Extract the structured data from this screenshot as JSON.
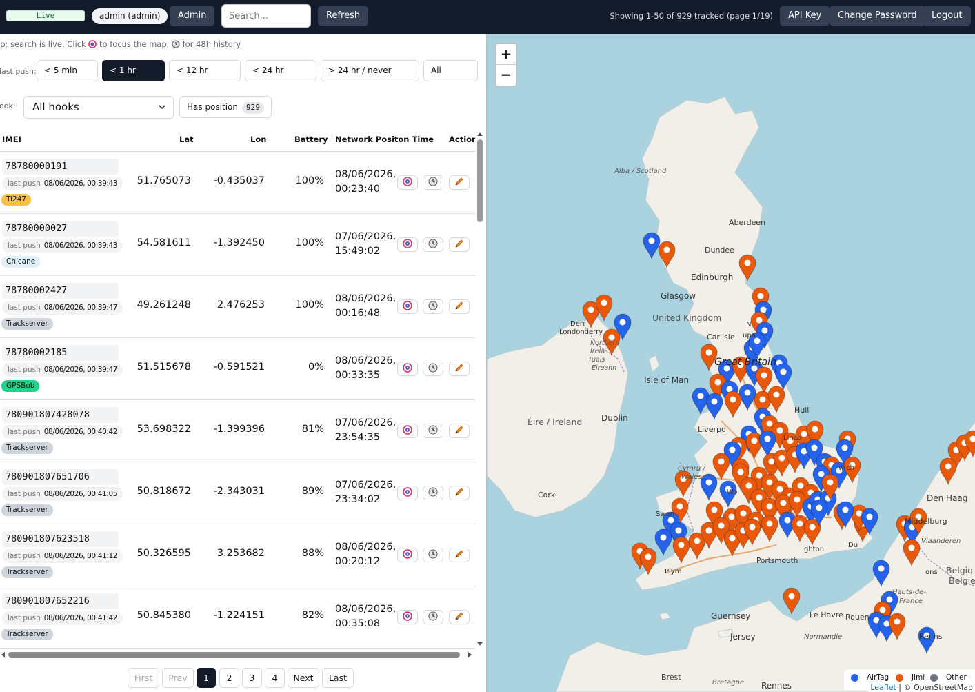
{
  "header": {
    "status": "Live",
    "user": "admin (admin)",
    "admin_label": "Admin",
    "search_placeholder": "Search...",
    "refresh_label": "Refresh",
    "showing": "Showing 1-50 of 929 tracked (page 1/19)",
    "api_key_label": "API Key",
    "change_password_label": "Change Password",
    "logout_label": "Logout"
  },
  "tip": {
    "part1": "ip: search is live. Click",
    "part2": "to focus the map,",
    "part3": "for 48h history."
  },
  "filters": {
    "last_push_label": "last push:",
    "buttons": [
      "< 5 min",
      "< 1 hr",
      "< 12 hr",
      "< 24 hr",
      "> 24 hr / never",
      "All"
    ],
    "active_index": 1,
    "hook_label": "ook:",
    "hook_value": "All hooks",
    "has_position_label": "Has position",
    "has_position_count": "929"
  },
  "table": {
    "headers": {
      "imei": "IMEI",
      "lat": "Lat",
      "lon": "Lon",
      "battery": "Battery",
      "time": "Network Positon Time",
      "actions": "Actions"
    },
    "push_key": "last push",
    "rows": [
      {
        "imei": "78780000191",
        "push": "08/06/2026, 00:39:43",
        "hook": "Ti247",
        "lat": "51.765073",
        "lon": "-0.435037",
        "battery": "100%",
        "date": "08/06/2026,",
        "time": "00:23:40"
      },
      {
        "imei": "78780000027",
        "push": "08/06/2026, 00:39:43",
        "hook": "Chicane",
        "lat": "54.581611",
        "lon": "-1.392450",
        "battery": "100%",
        "date": "07/06/2026,",
        "time": "15:49:02"
      },
      {
        "imei": "78780002427",
        "push": "08/06/2026, 00:39:47",
        "hook": "Trackserver",
        "lat": "49.261248",
        "lon": "2.476253",
        "battery": "100%",
        "date": "08/06/2026,",
        "time": "00:16:48"
      },
      {
        "imei": "78780002185",
        "push": "08/06/2026, 00:39:47",
        "hook": "GPSBob",
        "lat": "51.515678",
        "lon": "-0.591521",
        "battery": "0%",
        "date": "08/06/2026,",
        "time": "00:33:35"
      },
      {
        "imei": "780901807428078",
        "push": "08/06/2026, 00:40:42",
        "hook": "Trackserver",
        "lat": "53.698322",
        "lon": "-1.399396",
        "battery": "81%",
        "date": "07/06/2026,",
        "time": "23:54:35"
      },
      {
        "imei": "780901807651706",
        "push": "08/06/2026, 00:41:05",
        "hook": "Trackserver",
        "lat": "50.818672",
        "lon": "-2.343031",
        "battery": "89%",
        "date": "07/06/2026,",
        "time": "23:34:02"
      },
      {
        "imei": "780901807623518",
        "push": "08/06/2026, 00:41:12",
        "hook": "Trackserver",
        "lat": "50.326595",
        "lon": "3.253682",
        "battery": "88%",
        "date": "08/06/2026,",
        "time": "00:20:12"
      },
      {
        "imei": "780901807652216",
        "push": "08/06/2026, 00:41:42",
        "hook": "Trackserver",
        "lat": "50.845380",
        "lon": "-1.224151",
        "battery": "82%",
        "date": "08/06/2026,",
        "time": "00:35:08"
      }
    ]
  },
  "hook_colors": {
    "Ti247": "#f7c244",
    "Chicane": "#dff0fb",
    "Trackserver": "#cfd5dc",
    "GPSBob": "#22d48a"
  },
  "pagination": [
    "First",
    "Prev",
    "1",
    "2",
    "3",
    "4",
    "Next",
    "Last"
  ],
  "map": {
    "zoom_in": "+",
    "zoom_out": "−",
    "labels": {
      "alba": "Alba / Scotland",
      "aberdeen": "Aberdeen",
      "dundee": "Dundee",
      "edinburgh": "Edinburgh",
      "glasgow": "Glasgow",
      "uk": "United Kingdom",
      "carlisle": "Carlisle",
      "great_britain": "Great Britain",
      "isle_of_man": "Isle of Man",
      "derry": "Derr",
      "londonderry": "Londonderry",
      "ni1": "Northern",
      "ni2": "Irela",
      "ni3": "Tuais",
      "ni4": "Éireann",
      "eire": "Éire / Ireland",
      "dublin": "Dublin",
      "cork": "Cork",
      "cymru": "Cymru /",
      "wales": "Wales",
      "liverpool": "Liverpo",
      "hull": "Hull",
      "lincoln": "Linco",
      "norwich": "wich",
      "swansea": "Swan",
      "plymouth": "Plym",
      "portsmouth": "Portsmouth",
      "brighton": "ghton",
      "guernsey": "Guernsey",
      "jersey": "Jersey",
      "le_havre": "Le Havre",
      "rouen": "Rouen",
      "normandie": "Normandie",
      "brest": "Brest",
      "bretagne": "Bretagne",
      "rennes": "Rennes",
      "reims": "Reims",
      "den_haag": "Den Haag",
      "middelburg": "Middelburg",
      "vlaanderen": "Vlaanderen",
      "belgique1": "Belgiq",
      "belgique2": "Belgie",
      "hauts": "Hauts-de-",
      "france": "France",
      "mons": "ons",
      "dunkerque": "Du",
      "newcastle": "N",
      "worcester": "Wo",
      "upon": "upo"
    },
    "legend": [
      "AirTag",
      "Jimi",
      "Other"
    ],
    "legend_colors": [
      "#2563eb",
      "#e8590c",
      "#6b7280"
    ],
    "attribution_link": "Leaflet",
    "attribution_text": "| © OpenStreetMap"
  }
}
